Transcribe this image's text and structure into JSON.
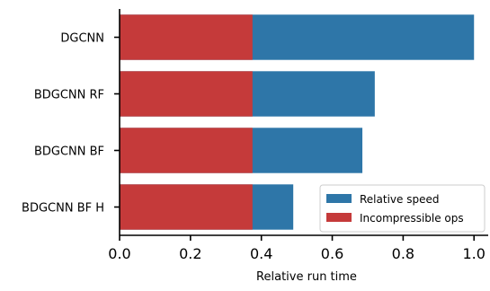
{
  "chart_data": {
    "type": "bar",
    "orientation": "horizontal",
    "stacked": "overlay",
    "categories": [
      "DGCNN",
      "BDGCNN RF",
      "BDGCNN BF",
      "BDGCNN BF H"
    ],
    "series": [
      {
        "name": "Relative speed",
        "values": [
          1.0,
          0.72,
          0.685,
          0.49
        ],
        "color": "#2e76a8"
      },
      {
        "name": "Incompressible ops",
        "values": [
          0.375,
          0.375,
          0.375,
          0.375
        ],
        "color": "#c53a3a"
      }
    ],
    "title": "",
    "xlabel": "Relative run time",
    "ylabel": "",
    "xlim": [
      0,
      1.04
    ],
    "xticks": [
      "0.0",
      "0.2",
      "0.4",
      "0.6",
      "0.8",
      "1.0"
    ],
    "xtick_values": [
      0.0,
      0.2,
      0.4,
      0.6,
      0.8,
      1.0
    ],
    "grid": false,
    "legend_position": "lower-right"
  }
}
